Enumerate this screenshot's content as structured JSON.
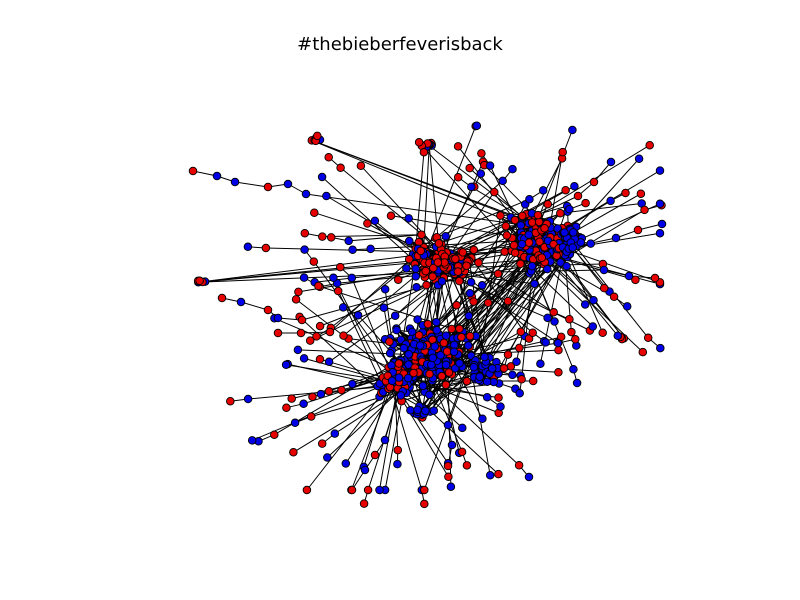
{
  "figure": {
    "title": "#thebieberfeverisback"
  },
  "graph": {
    "type": "network",
    "node_colors": {
      "group_a": "#e60000",
      "group_b": "#0000e6",
      "edge": "#000000",
      "node_outline": "#000000"
    },
    "layout": "force-directed",
    "axes_visible": false
  }
}
